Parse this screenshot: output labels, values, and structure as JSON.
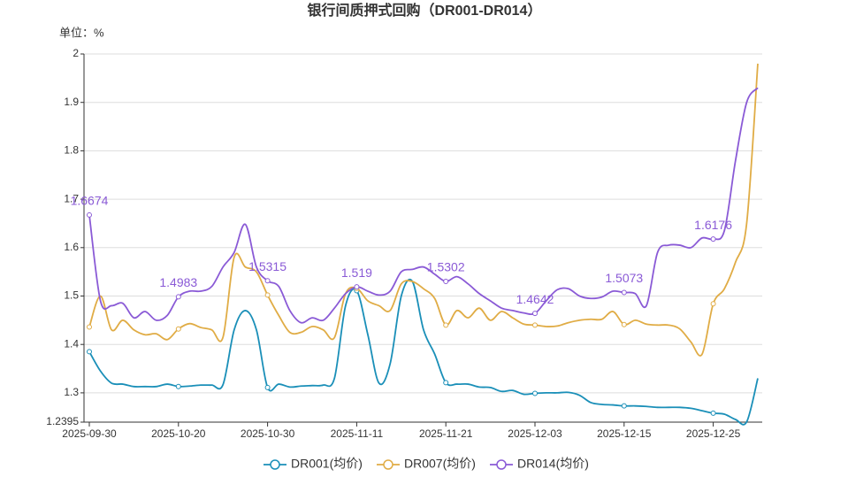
{
  "chart_data": {
    "type": "line",
    "title": "银行间质押式回购（DR001-DR014）",
    "unit_label": "单位：%",
    "categories": [
      "2025-09-30",
      null,
      null,
      null,
      null,
      null,
      null,
      null,
      "2025-10-20",
      null,
      null,
      null,
      null,
      null,
      null,
      null,
      "2025-10-30",
      null,
      null,
      null,
      null,
      null,
      null,
      null,
      "2025-11-11",
      null,
      null,
      null,
      null,
      null,
      null,
      null,
      "2025-11-21",
      null,
      null,
      null,
      null,
      null,
      null,
      null,
      "2025-12-03",
      null,
      null,
      null,
      null,
      null,
      null,
      null,
      "2025-12-15",
      null,
      null,
      null,
      null,
      null,
      null,
      null,
      "2025-12-25",
      null,
      null,
      null,
      null
    ],
    "ylim": [
      1.2395,
      2
    ],
    "yticks": [
      1.2395,
      1.3,
      1.4,
      1.5,
      1.6,
      1.7,
      1.8,
      1.9,
      2
    ],
    "grid": true,
    "smooth": true,
    "series": [
      {
        "name": "DR001(均价)",
        "color": "#1a8fb8",
        "show_labels": false,
        "values": [
          1.385,
          1.345,
          1.32,
          1.318,
          1.313,
          1.313,
          1.313,
          1.318,
          1.313,
          1.314,
          1.316,
          1.316,
          1.317,
          1.43,
          1.47,
          1.43,
          1.311,
          1.318,
          1.312,
          1.314,
          1.315,
          1.316,
          1.33,
          1.48,
          1.511,
          1.42,
          1.32,
          1.36,
          1.5,
          1.53,
          1.43,
          1.38,
          1.321,
          1.318,
          1.318,
          1.312,
          1.311,
          1.303,
          1.305,
          1.297,
          1.299,
          1.3,
          1.3,
          1.301,
          1.295,
          1.28,
          1.276,
          1.275,
          1.273,
          1.273,
          1.272,
          1.27,
          1.27,
          1.27,
          1.268,
          1.263,
          1.258,
          1.256,
          1.245,
          1.24,
          1.33
        ]
      },
      {
        "name": "DR007(均价)",
        "color": "#e0ac45",
        "show_labels": false,
        "values": [
          1.436,
          1.5,
          1.43,
          1.45,
          1.43,
          1.42,
          1.422,
          1.41,
          1.432,
          1.443,
          1.435,
          1.43,
          1.415,
          1.58,
          1.56,
          1.55,
          1.502,
          1.46,
          1.425,
          1.425,
          1.437,
          1.43,
          1.414,
          1.505,
          1.516,
          1.49,
          1.48,
          1.47,
          1.525,
          1.53,
          1.515,
          1.495,
          1.44,
          1.47,
          1.455,
          1.475,
          1.45,
          1.468,
          1.455,
          1.442,
          1.44,
          1.437,
          1.438,
          1.445,
          1.45,
          1.452,
          1.452,
          1.468,
          1.441,
          1.45,
          1.442,
          1.44,
          1.44,
          1.432,
          1.405,
          1.38,
          1.484,
          1.515,
          1.57,
          1.65,
          1.98
        ]
      },
      {
        "name": "DR014(均价)",
        "color": "#8a5ad6",
        "show_labels": true,
        "values": [
          1.6674,
          1.49,
          1.48,
          1.485,
          1.455,
          1.468,
          1.45,
          1.46,
          1.4983,
          1.51,
          1.51,
          1.52,
          1.56,
          1.59,
          1.648,
          1.56,
          1.5315,
          1.52,
          1.47,
          1.445,
          1.455,
          1.45,
          1.475,
          1.505,
          1.519,
          1.51,
          1.502,
          1.51,
          1.55,
          1.555,
          1.56,
          1.545,
          1.5302,
          1.54,
          1.525,
          1.505,
          1.49,
          1.475,
          1.47,
          1.465,
          1.4642,
          1.49,
          1.513,
          1.515,
          1.5,
          1.495,
          1.498,
          1.51,
          1.5073,
          1.505,
          1.48,
          1.59,
          1.605,
          1.605,
          1.6,
          1.62,
          1.6176,
          1.635,
          1.78,
          1.9,
          1.93
        ]
      }
    ]
  }
}
